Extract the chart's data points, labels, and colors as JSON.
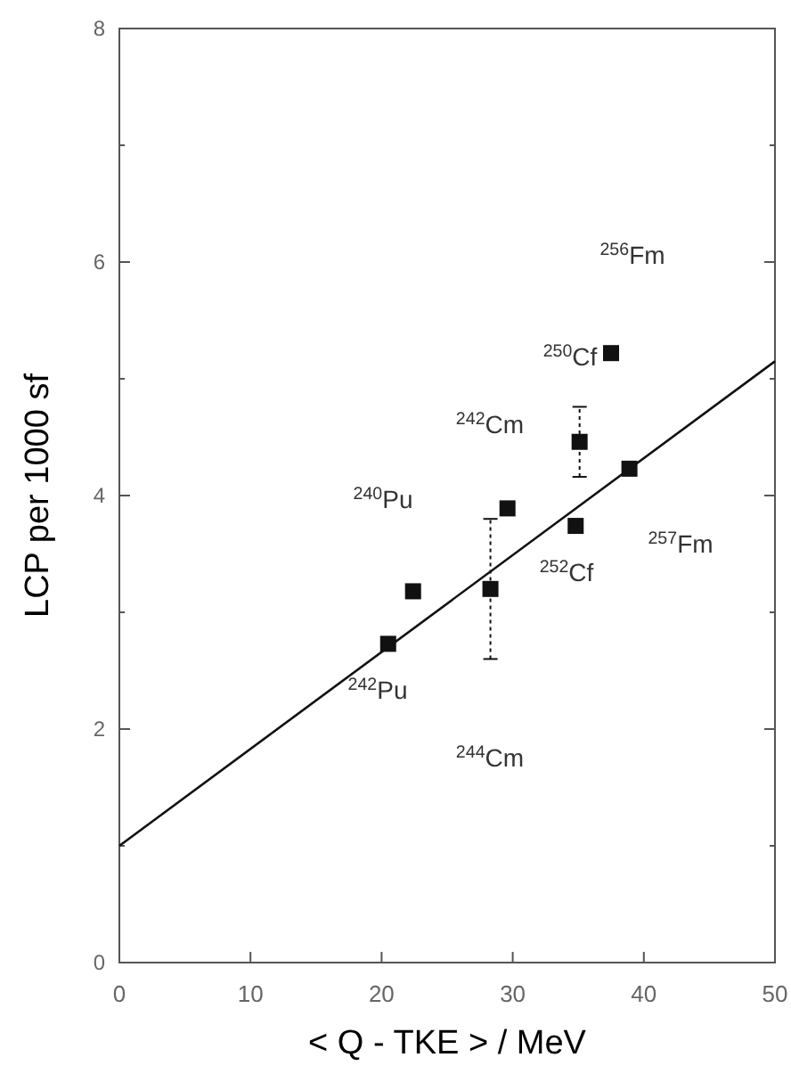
{
  "chart_data": {
    "type": "scatter",
    "xlabel": "< Q - TKE > / MeV",
    "ylabel": "LCP per 1000 sf",
    "xlim": [
      0,
      50
    ],
    "ylim": [
      0,
      8
    ],
    "xticks": [
      0,
      10,
      20,
      30,
      40,
      50
    ],
    "yticks": [
      0,
      {
        "value": 1,
        "label": null
      },
      2,
      {
        "value": 3,
        "label": null
      },
      4,
      {
        "value": 5,
        "label": null
      },
      6,
      {
        "value": 7,
        "label": null
      },
      8
    ],
    "grid": false,
    "marker": "square",
    "series": [
      {
        "color": "#111111",
        "x": [
          20.5,
          22.4,
          28.3,
          29.6,
          34.8,
          35.1,
          37.5,
          38.9
        ],
        "values": [
          2.73,
          3.18,
          3.2,
          3.89,
          3.74,
          4.46,
          5.22,
          4.23
        ],
        "errors": [
          null,
          null,
          0.6,
          null,
          null,
          0.3,
          null,
          null
        ]
      },
      {
        "type": "line",
        "color": "#111111",
        "x": [
          0,
          50
        ],
        "values": [
          1.0,
          5.15
        ],
        "marker": "none",
        "line_style": "solid"
      }
    ],
    "annotations": [
      "$^{256}$Fm",
      "$^{250}$Cf",
      "$^{242}$Cm",
      "$^{240}$Pu",
      "$^{257}$Fm",
      "$^{252}$Cf",
      "$^{242}$Pu",
      "$^{244}$Cm"
    ]
  }
}
